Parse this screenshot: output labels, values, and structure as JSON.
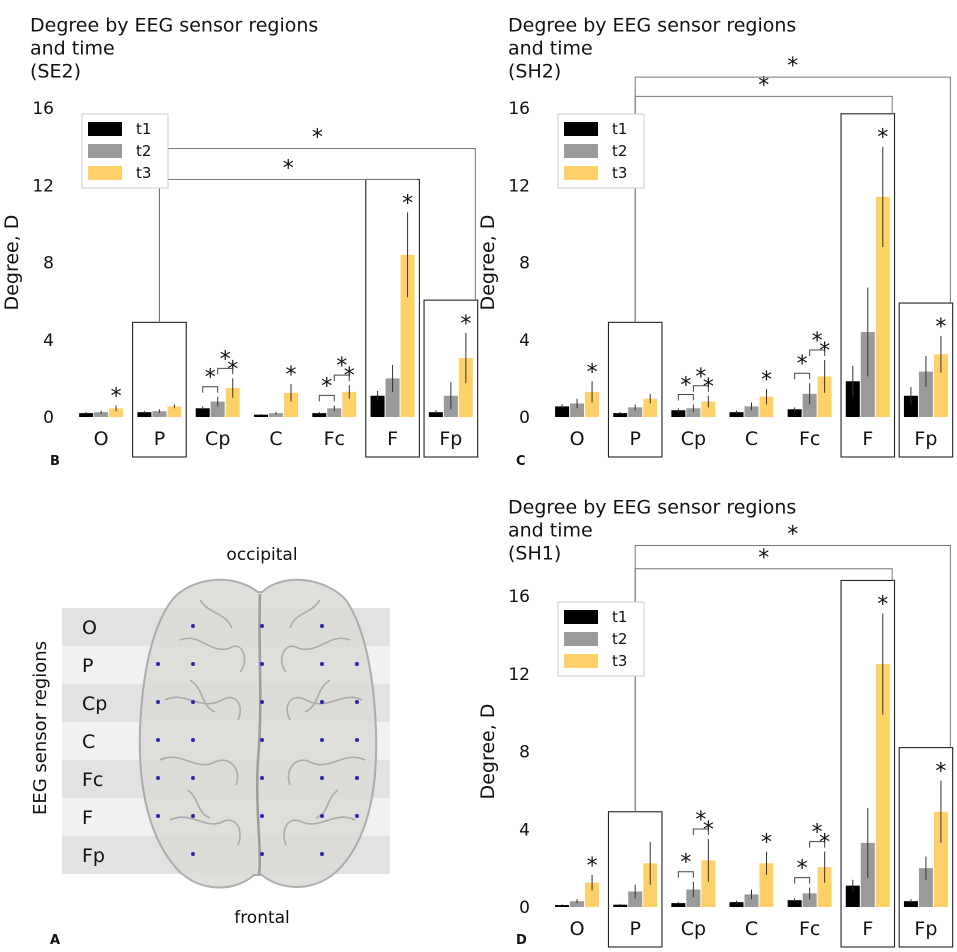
{
  "figure": {
    "panel_labels": {
      "A": "A",
      "B": "B",
      "C": "C",
      "D": "D"
    },
    "brain": {
      "top_label": "occipital",
      "bottom_label": "frontal",
      "axis_label": "EEG sensor regions",
      "regions": [
        "O",
        "P",
        "Cp",
        "C",
        "Fc",
        "F",
        "Fp"
      ],
      "colors": {
        "band_dark": "#e2e2e2",
        "band_light": "#f1f1f1",
        "brain_fill": "#dcdcd8",
        "brain_stroke": "#a0a0a0",
        "electrode": "#2a2aa8"
      }
    }
  },
  "colors": {
    "t1": "#000000",
    "t2": "#9a9a9a",
    "t3": "#fdd167"
  },
  "chart_data": [
    {
      "id": "B",
      "type": "bar",
      "title": [
        "Degree by EEG sensor regions",
        "and time",
        "(SE2)"
      ],
      "ylabel": "Degree, D",
      "xlabel": "",
      "ylim": [
        0,
        16
      ],
      "yticks": [
        0,
        4,
        8,
        12,
        16
      ],
      "categories": [
        "O",
        "P",
        "Cp",
        "C",
        "Fc",
        "F",
        "Fp"
      ],
      "legend": {
        "position": "top-left",
        "entries": [
          "t1",
          "t2",
          "t3"
        ]
      },
      "series": [
        {
          "name": "t1",
          "values": [
            0.2,
            0.25,
            0.45,
            0.12,
            0.2,
            1.1,
            0.25
          ],
          "err": [
            0.06,
            0.06,
            0.1,
            0.04,
            0.06,
            0.25,
            0.1
          ]
        },
        {
          "name": "t2",
          "values": [
            0.25,
            0.3,
            0.8,
            0.2,
            0.45,
            2.0,
            1.1
          ],
          "err": [
            0.08,
            0.1,
            0.25,
            0.07,
            0.15,
            0.7,
            0.7
          ]
        },
        {
          "name": "t3",
          "values": [
            0.45,
            0.55,
            1.5,
            1.25,
            1.3,
            8.4,
            3.05
          ],
          "err": [
            0.15,
            0.1,
            0.5,
            0.45,
            0.35,
            2.2,
            1.3
          ]
        }
      ],
      "boxed_categories": [
        "P",
        "F",
        "Fp"
      ],
      "t3_stars": [
        "O",
        "Cp",
        "C",
        "Fc",
        "F",
        "Fp"
      ],
      "pair_brackets": [
        {
          "category": "Cp",
          "pairs": [
            [
              "t1",
              "t2"
            ],
            [
              "t2",
              "t3"
            ]
          ]
        },
        {
          "category": "Fc",
          "pairs": [
            [
              "t1",
              "t2"
            ],
            [
              "t2",
              "t3"
            ]
          ]
        }
      ],
      "brackets": [
        {
          "from": "P",
          "to": "F",
          "label": "*",
          "level": 12.3
        },
        {
          "from": "P",
          "to": "Fp",
          "label": "*",
          "level": 13.9
        }
      ]
    },
    {
      "id": "C",
      "type": "bar",
      "title": [
        "Degree by EEG sensor regions",
        "and time",
        "(SH2)"
      ],
      "ylabel": "Degree, D",
      "xlabel": "",
      "ylim": [
        0,
        16
      ],
      "yticks": [
        0,
        4,
        8,
        12,
        16
      ],
      "categories": [
        "O",
        "P",
        "Cp",
        "C",
        "Fc",
        "F",
        "Fp"
      ],
      "legend": {
        "position": "top-left",
        "entries": [
          "t1",
          "t2",
          "t3"
        ]
      },
      "series": [
        {
          "name": "t1",
          "values": [
            0.55,
            0.2,
            0.35,
            0.25,
            0.4,
            1.85,
            1.1
          ],
          "err": [
            0.12,
            0.06,
            0.1,
            0.08,
            0.1,
            0.8,
            0.45
          ]
        },
        {
          "name": "t2",
          "values": [
            0.7,
            0.5,
            0.45,
            0.55,
            1.2,
            4.4,
            2.35
          ],
          "err": [
            0.25,
            0.15,
            0.2,
            0.2,
            0.55,
            2.3,
            0.8
          ]
        },
        {
          "name": "t3",
          "values": [
            1.3,
            0.95,
            0.8,
            1.05,
            2.1,
            11.4,
            3.25
          ],
          "err": [
            0.55,
            0.25,
            0.3,
            0.4,
            0.85,
            2.6,
            0.95
          ]
        }
      ],
      "boxed_categories": [
        "P",
        "F",
        "Fp"
      ],
      "t3_stars": [
        "O",
        "Cp",
        "C",
        "Fc",
        "F",
        "Fp"
      ],
      "pair_brackets": [
        {
          "category": "Cp",
          "pairs": [
            [
              "t1",
              "t2"
            ],
            [
              "t2",
              "t3"
            ]
          ]
        },
        {
          "category": "Fc",
          "pairs": [
            [
              "t1",
              "t2"
            ],
            [
              "t2",
              "t3"
            ]
          ]
        }
      ],
      "brackets": [
        {
          "from": "P",
          "to": "F",
          "label": "*",
          "level": 16.6
        },
        {
          "from": "P",
          "to": "Fp",
          "label": "*",
          "level": 17.6
        }
      ]
    },
    {
      "id": "D",
      "type": "bar",
      "title": [
        "Degree by EEG sensor regions",
        "and time",
        "(SH1)"
      ],
      "ylabel": "Degree, D",
      "xlabel": "",
      "ylim": [
        0,
        16
      ],
      "yticks": [
        0,
        4,
        8,
        12,
        16
      ],
      "categories": [
        "O",
        "P",
        "Cp",
        "C",
        "Fc",
        "F",
        "Fp"
      ],
      "legend": {
        "position": "top-left",
        "entries": [
          "t1",
          "t2",
          "t3"
        ]
      },
      "series": [
        {
          "name": "t1",
          "values": [
            0.1,
            0.12,
            0.2,
            0.25,
            0.35,
            1.1,
            0.3
          ],
          "err": [
            0.04,
            0.04,
            0.06,
            0.08,
            0.1,
            0.3,
            0.1
          ]
        },
        {
          "name": "t2",
          "values": [
            0.3,
            0.8,
            0.9,
            0.65,
            0.7,
            3.3,
            2.0
          ],
          "err": [
            0.1,
            0.35,
            0.4,
            0.25,
            0.3,
            1.8,
            0.6
          ]
        },
        {
          "name": "t3",
          "values": [
            1.25,
            2.25,
            2.4,
            2.25,
            2.05,
            12.5,
            4.9
          ],
          "err": [
            0.4,
            1.1,
            1.1,
            0.6,
            0.8,
            2.6,
            1.6
          ]
        }
      ],
      "boxed_categories": [
        "P",
        "F",
        "Fp"
      ],
      "t3_stars": [
        "O",
        "Cp",
        "C",
        "Fc",
        "F",
        "Fp"
      ],
      "pair_brackets": [
        {
          "category": "Cp",
          "pairs": [
            [
              "t1",
              "t2"
            ],
            [
              "t2",
              "t3"
            ]
          ]
        },
        {
          "category": "Fc",
          "pairs": [
            [
              "t1",
              "t2"
            ],
            [
              "t2",
              "t3"
            ]
          ]
        }
      ],
      "brackets": [
        {
          "from": "P",
          "to": "F",
          "label": "*",
          "level": 17.4
        },
        {
          "from": "P",
          "to": "Fp",
          "label": "*",
          "level": 18.6
        }
      ]
    }
  ]
}
